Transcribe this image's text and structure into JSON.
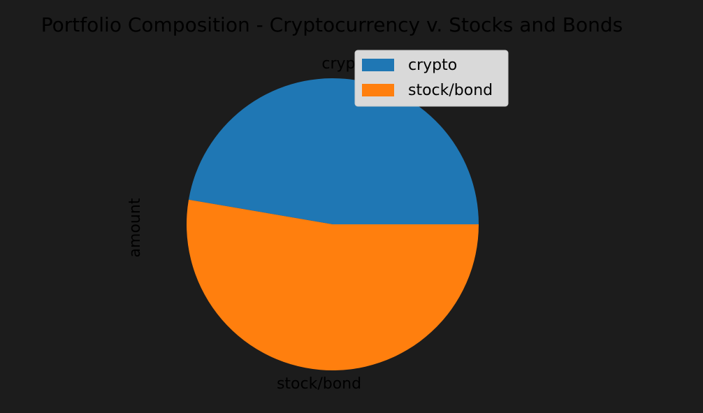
{
  "chart_data": {
    "type": "pie",
    "title": "Portfolio Composition - Cryptocurrency v. Stocks and Bonds",
    "ylabel": "amount",
    "categories": [
      "crypto",
      "stock/bond"
    ],
    "values": [
      47.3,
      52.7
    ],
    "colors": [
      "#1f77b4",
      "#ff7f0e"
    ],
    "legend": {
      "placement": "top-right",
      "entries": [
        "crypto",
        "stock/bond"
      ]
    },
    "start_angle_deg": 0,
    "direction": "counterclockwise"
  },
  "colors": {
    "background": "#1c1c1c",
    "text": "#000000",
    "legend_background": "#d9d9d9",
    "legend_border": "#cccccc"
  }
}
